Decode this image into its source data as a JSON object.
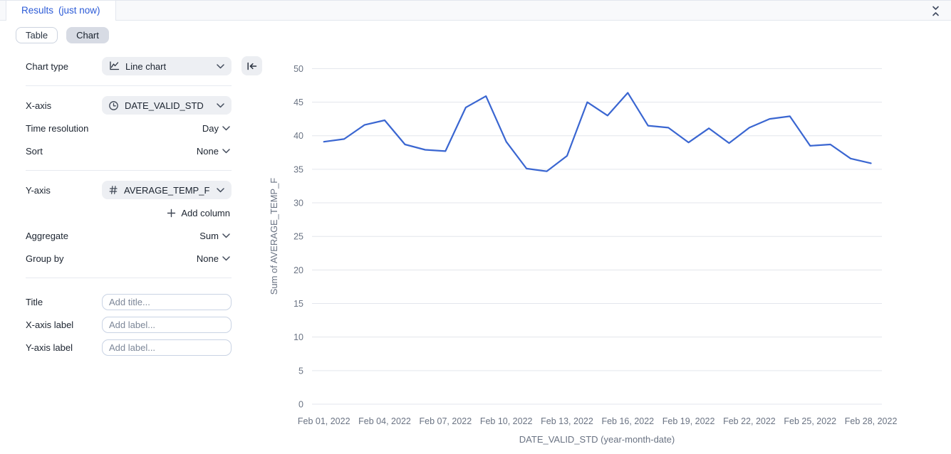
{
  "topbar": {
    "tab_label": "Results",
    "tab_status": "(just now)"
  },
  "view_toggle": {
    "table_label": "Table",
    "chart_label": "Chart",
    "selected": "Chart"
  },
  "panel": {
    "chart_type": {
      "label": "Chart type",
      "value": "Line chart",
      "icon": "line-chart-icon"
    },
    "x_axis": {
      "label": "X-axis",
      "value": "DATE_VALID_STD",
      "icon": "clock-icon"
    },
    "time_resolution": {
      "label": "Time resolution",
      "value": "Day"
    },
    "sort": {
      "label": "Sort",
      "value": "None"
    },
    "y_axis": {
      "label": "Y-axis",
      "value": "AVERAGE_TEMP_F",
      "icon": "hash-icon"
    },
    "add_column_label": "Add column",
    "aggregate": {
      "label": "Aggregate",
      "value": "Sum"
    },
    "group_by": {
      "label": "Group by",
      "value": "None"
    },
    "title_field": {
      "label": "Title",
      "placeholder": "Add title..."
    },
    "x_label_field": {
      "label": "X-axis label",
      "placeholder": "Add label..."
    },
    "y_label_field": {
      "label": "Y-axis label",
      "placeholder": "Add label..."
    }
  },
  "chart_data": {
    "type": "line",
    "title": "",
    "xlabel": "DATE_VALID_STD (year-month-date)",
    "ylabel": "Sum of AVERAGE_TEMP_F",
    "x": [
      "Feb 01, 2022",
      "Feb 02, 2022",
      "Feb 03, 2022",
      "Feb 04, 2022",
      "Feb 05, 2022",
      "Feb 06, 2022",
      "Feb 07, 2022",
      "Feb 08, 2022",
      "Feb 09, 2022",
      "Feb 10, 2022",
      "Feb 11, 2022",
      "Feb 12, 2022",
      "Feb 13, 2022",
      "Feb 14, 2022",
      "Feb 15, 2022",
      "Feb 16, 2022",
      "Feb 17, 2022",
      "Feb 18, 2022",
      "Feb 19, 2022",
      "Feb 20, 2022",
      "Feb 21, 2022",
      "Feb 22, 2022",
      "Feb 23, 2022",
      "Feb 24, 2022",
      "Feb 25, 2022",
      "Feb 26, 2022",
      "Feb 27, 2022",
      "Feb 28, 2022"
    ],
    "series": [
      {
        "name": "Sum of AVERAGE_TEMP_F",
        "values": [
          39.1,
          39.5,
          41.6,
          42.3,
          38.7,
          37.9,
          37.7,
          44.2,
          45.9,
          39.1,
          35.1,
          34.7,
          37.0,
          45.0,
          43.0,
          46.4,
          41.5,
          41.2,
          39.0,
          41.1,
          38.9,
          41.2,
          42.5,
          42.9,
          38.5,
          38.7,
          36.6,
          35.9
        ]
      }
    ],
    "ylim": [
      0,
      50
    ],
    "y_ticks": [
      0,
      5,
      10,
      15,
      20,
      25,
      30,
      35,
      40,
      45,
      50
    ],
    "x_tick_indices": [
      0,
      3,
      6,
      9,
      12,
      15,
      18,
      21,
      24,
      27
    ],
    "grid": true,
    "legend": "none",
    "line_color": "#3a66d1",
    "grid_color": "#e3e6ec",
    "tick_color": "#6a7383"
  }
}
